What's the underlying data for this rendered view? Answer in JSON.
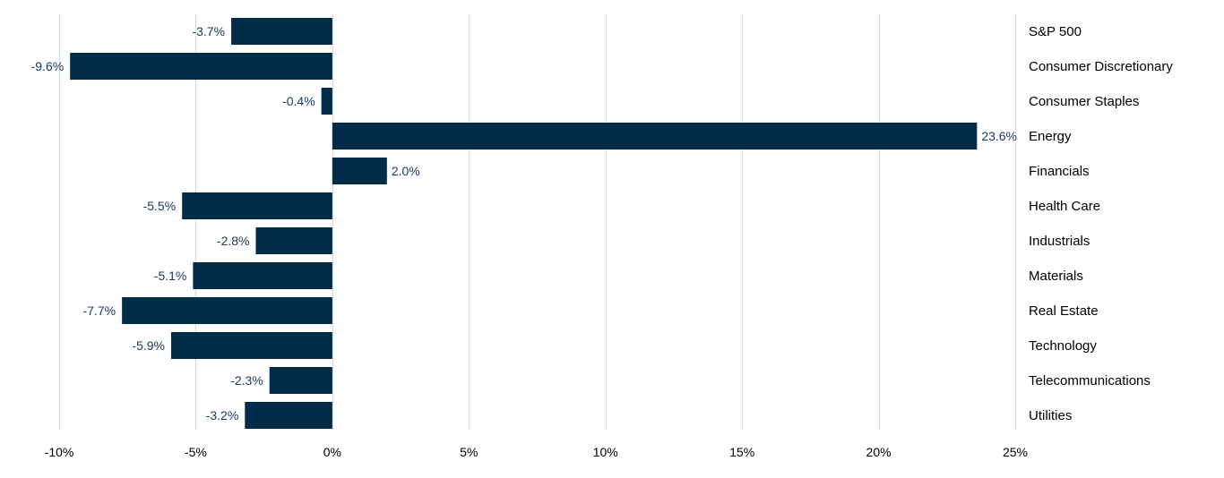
{
  "chart_data": {
    "type": "bar",
    "orientation": "horizontal",
    "title": "",
    "xlabel": "",
    "ylabel": "",
    "categories": [
      "S&P 500",
      "Consumer Discretionary",
      "Consumer Staples",
      "Energy",
      "Financials",
      "Health Care",
      "Industrials",
      "Materials",
      "Real Estate",
      "Technology",
      "Telecommunications",
      "Utilities"
    ],
    "values": [
      -3.7,
      -9.6,
      -0.4,
      23.6,
      2.0,
      -5.5,
      -2.8,
      -5.1,
      -7.7,
      -5.9,
      -2.3,
      -3.2
    ],
    "data_labels": [
      "-3.7%",
      "-9.6%",
      "-0.4%",
      "23.6%",
      "2.0%",
      "-5.5%",
      "-2.8%",
      "-5.1%",
      "-7.7%",
      "-5.9%",
      "-2.3%",
      "-3.2%"
    ],
    "xlim": [
      -10,
      25
    ],
    "x_ticks": [
      -10,
      -5,
      0,
      5,
      10,
      15,
      20,
      25
    ],
    "x_tick_labels": [
      "-10%",
      "-5%",
      "0%",
      "5%",
      "10%",
      "15%",
      "20%",
      "25%"
    ],
    "grid": "vertical",
    "legend": "none",
    "colors": {
      "bar": "#002B49",
      "data_label": "#1F3864",
      "gridline": "#D9D9D9",
      "text": "#000000"
    }
  }
}
